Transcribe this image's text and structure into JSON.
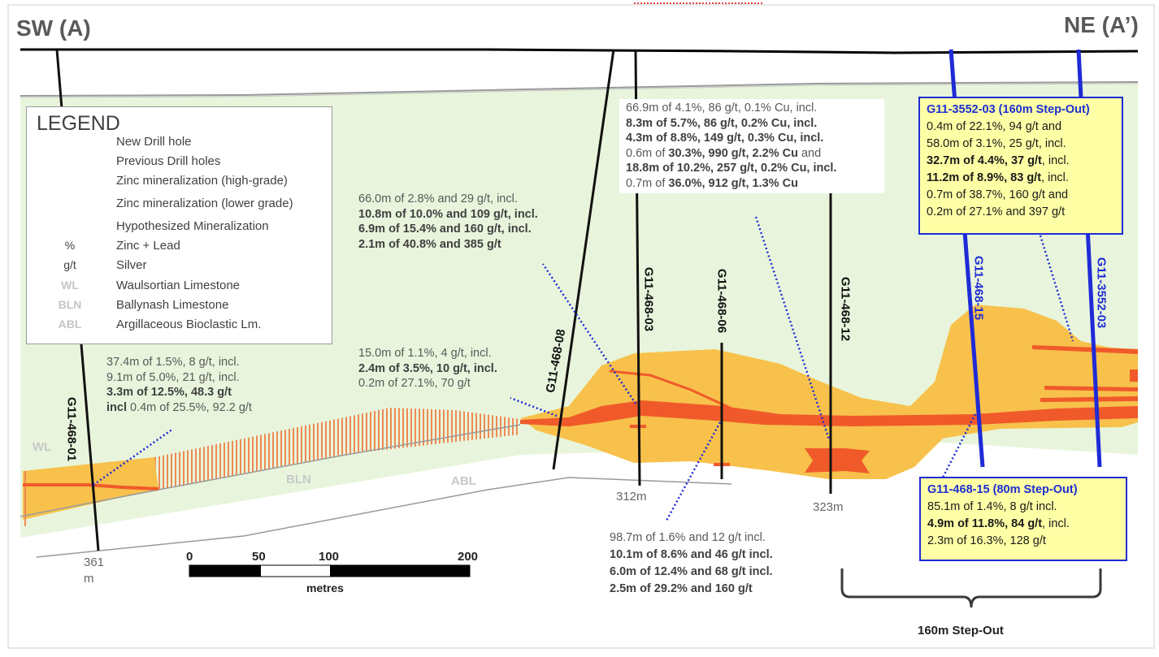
{
  "section": {
    "left_label": "SW (A)",
    "right_label": "NE (A’)"
  },
  "legend": {
    "title": "LEGEND",
    "items": [
      {
        "symbol": "",
        "label": "New Drill hole"
      },
      {
        "symbol": "",
        "label": "Previous Drill holes"
      },
      {
        "symbol": "",
        "label": "Zinc mineralization (high-grade)"
      },
      {
        "symbol": "",
        "label": "Zinc mineralization  (lower grade)"
      },
      {
        "symbol": "",
        "label": "Hypothesized Mineralization"
      },
      {
        "symbol": "%",
        "label": "Zinc + Lead"
      },
      {
        "symbol": "g/t",
        "label": "Silver"
      },
      {
        "symbol": "WL",
        "label": "Waulsortian Limestone"
      },
      {
        "symbol": "BLN",
        "label": "Ballynash Limestone"
      },
      {
        "symbol": "ABL",
        "label": "Argillaceous Bioclastic Lm."
      }
    ]
  },
  "units": {
    "wl": "WL",
    "bln": "BLN",
    "abl": "ABL"
  },
  "holes": {
    "h01": "G11-468-01",
    "h08": "G11-468-08",
    "h03": "G11-468-03",
    "h06": "G11-468-06",
    "h12": "G11-468-12",
    "h15": "G11-468-15",
    "h3552": "G11-3552-03"
  },
  "depths": {
    "d361a": "361",
    "d361b": "m",
    "d312": "312m",
    "d323": "323m"
  },
  "scale": {
    "t0": "0",
    "t50": "50",
    "t100": "100",
    "t200": "200",
    "unit": "metres"
  },
  "stepout": "160m Step-Out",
  "intercepts": {
    "h01": [
      {
        "text": "37.4m of 1.5%, 8 g/t, incl."
      },
      {
        "text": "9.1m of 5.0%, 21 g/t, incl."
      },
      {
        "text": "3.3m of 12.5%, 48.3 g/t"
      },
      {
        "lead": "incl",
        "text": " 0.4m of 25.5%, 92.2 g/t"
      }
    ],
    "h08a": [
      {
        "text": "66.0m of 2.8% and 29 g/t, incl."
      },
      {
        "text": "10.8m of 10.0% and 109 g/t, incl."
      },
      {
        "text": "6.9m of 15.4% and 160 g/t, incl."
      },
      {
        "text": "2.1m of 40.8% and 385 g/t"
      }
    ],
    "h08b": [
      {
        "text": "15.0m of 1.1%, 4 g/t, incl."
      },
      {
        "text": "2.4m of 3.5%, ",
        "b": "10 g/t, incl."
      },
      {
        "text": "0.2m of 27.1%, 70 g/t"
      }
    ],
    "h12": [
      {
        "text": "66.9m of 4.1%, 86 g/t, 0.1% Cu, incl."
      },
      {
        "text": "8.3m of 5.7%, 86 g/t, 0.2% Cu, incl."
      },
      {
        "text": "4.3m of 8.8%, 149 g/t, 0.3% Cu, incl."
      },
      {
        "text": "0.6m of ",
        "b": "30.3%, 990 g/t, 2.2% Cu",
        "after": " and"
      },
      {
        "text": "18.8m of 10.2%, 257 g/t, 0.2% Cu, incl."
      },
      {
        "text": "0.7m of ",
        "b": "36.0%, 912 g/t, 1.3% Cu"
      }
    ],
    "h03": [
      {
        "text": "98.7m of 1.6% and 12 g/t incl."
      },
      {
        "text": "10.1m of 8.6% and 46 g/t incl."
      },
      {
        "text": "6.0m of 12.4% and 68 g/t incl."
      },
      {
        "text": "2.5m of 29.2% and 160 g/t"
      }
    ],
    "h3552": {
      "header": "G11-3552-03 (160m Step-Out)",
      "lines": [
        {
          "text": "0.4m of 22.1%, 94 g/t and"
        },
        {
          "text": "58.0m of 3.1%, 25 g/t, incl."
        },
        {
          "b": "32.7m of 4.4%, 37 g/t",
          "after": ", incl."
        },
        {
          "b": "11.2m of 8.9%, 83 g/t",
          "after": ", incl."
        },
        {
          "text": "0.7m of 38.7%, 160 g/t and"
        },
        {
          "text": "0.2m of 27.1% and 397 g/t"
        }
      ]
    },
    "h15": {
      "header": "G11-468-15 (80m Step-Out)",
      "lines": [
        {
          "text": "85.1m of 1.4%, 8 g/t incl."
        },
        {
          "b": "4.9m of 11.8%, 84 g/t",
          "after": ", incl."
        },
        {
          "text": "2.3m of 16.3%, 128 g/t"
        }
      ]
    }
  },
  "colors": {
    "new_hole": "#1f2bd6",
    "old_hole": "#111111",
    "high_grade": "#f05a2a",
    "lower_grade": "#f7c14b",
    "background_zone": "#e8f5dc",
    "hypothesized": "#ee8a55"
  }
}
